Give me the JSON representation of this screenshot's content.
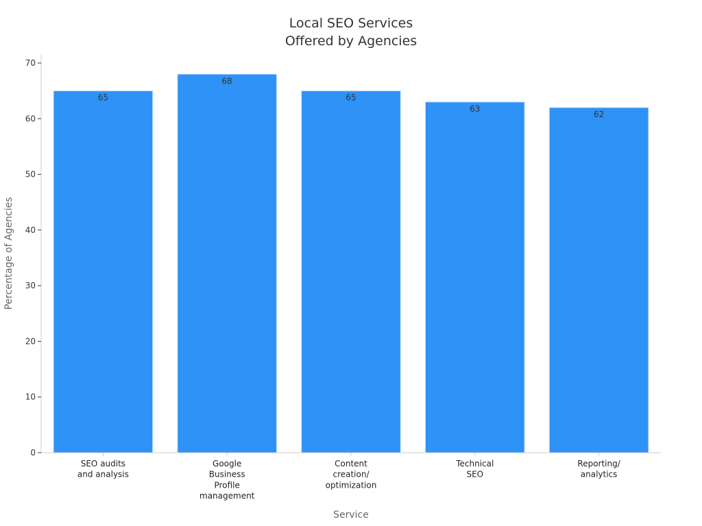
{
  "chart_data": {
    "type": "bar",
    "title_lines": [
      "Local SEO Services",
      "Offered by Agencies"
    ],
    "xlabel": "Service",
    "ylabel": "Percentage of Agencies",
    "categories": [
      [
        "SEO audits",
        "and analysis"
      ],
      [
        "Google",
        "Business",
        "Profile",
        "management"
      ],
      [
        "Content",
        "creation/",
        "optimization"
      ],
      [
        "Technical",
        "SEO"
      ],
      [
        "Reporting/",
        "analytics"
      ]
    ],
    "values": [
      65,
      68,
      65,
      63,
      62
    ],
    "ylim": [
      0,
      70
    ],
    "yticks": [
      0,
      10,
      20,
      30,
      40,
      50,
      60,
      70
    ],
    "grid": false,
    "bar_color": "#2e92f7",
    "data_labels": true
  }
}
